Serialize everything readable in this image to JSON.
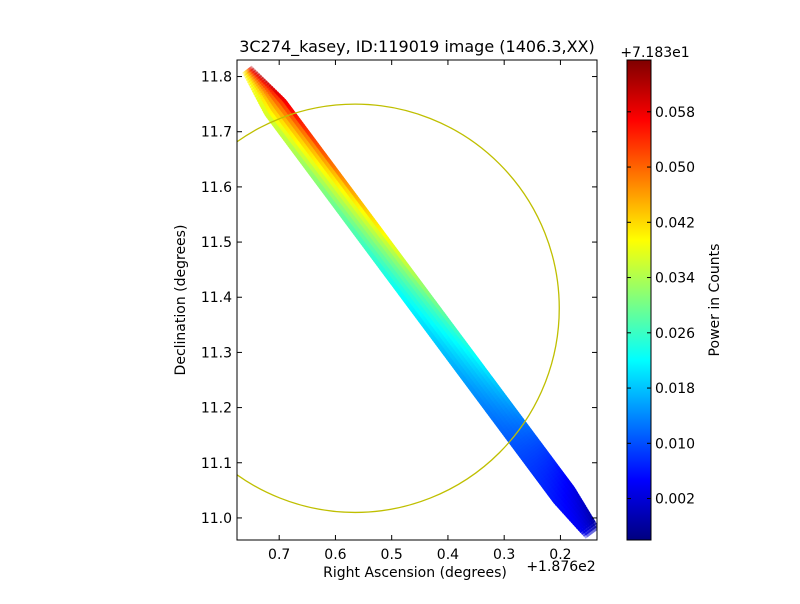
{
  "chart_data": {
    "type": "heatmap",
    "title": "3C274_kasey, ID:119019 image (1406.3,XX)",
    "xlabel": "Right Ascension (degrees)",
    "ylabel": "Declination (degrees)",
    "x_offset_label": "+1.876e2",
    "xlim": [
      0.775,
      0.135
    ],
    "ylim": [
      10.96,
      11.83
    ],
    "x_ticks": [
      0.7,
      0.6,
      0.5,
      0.4,
      0.3,
      0.2
    ],
    "x_tick_labels": [
      "0.7",
      "0.6",
      "0.5",
      "0.4",
      "0.3",
      "0.2"
    ],
    "y_ticks": [
      11.0,
      11.1,
      11.2,
      11.3,
      11.4,
      11.5,
      11.6,
      11.7,
      11.8
    ],
    "y_tick_labels": [
      "11.0",
      "11.1",
      "11.2",
      "11.3",
      "11.4",
      "11.5",
      "11.6",
      "11.7",
      "11.8"
    ],
    "colorbar": {
      "label": "Power in Counts",
      "offset_label": "+7.183e1",
      "colormap": "jet",
      "range": [
        -0.004,
        0.0655
      ],
      "ticks": [
        0.002,
        0.01,
        0.018,
        0.026,
        0.034,
        0.042,
        0.05,
        0.058
      ],
      "tick_labels": [
        "0.002",
        "0.010",
        "0.018",
        "0.026",
        "0.034",
        "0.042",
        "0.050",
        "0.058"
      ]
    },
    "strip": {
      "start": {
        "ra": 0.755,
        "dec": 11.81
      },
      "end": {
        "ra": 0.145,
        "dec": 10.975
      },
      "edge_value_max": 0.062,
      "edge_value_min": -0.002,
      "face_value_max": 0.04,
      "face_value_min": 0.003
    },
    "circle": {
      "center_ra": 0.565,
      "center_dec": 11.38,
      "radius_dec": 0.37,
      "color": "#bfbf00"
    }
  }
}
